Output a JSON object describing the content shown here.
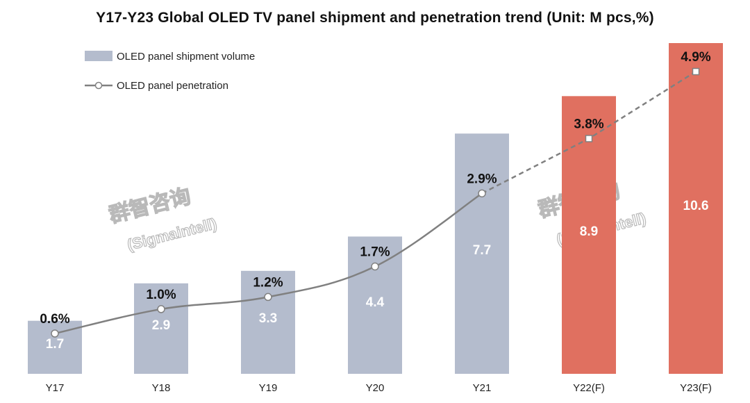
{
  "chart_data": {
    "type": "bar",
    "title": "Y17-Y23 Global OLED TV panel shipment and penetration trend (Unit: M pcs,%)",
    "categories": [
      "Y17",
      "Y18",
      "Y19",
      "Y20",
      "Y21",
      "Y22(F)",
      "Y23(F)"
    ],
    "series": [
      {
        "name": "OLED panel shipment volume",
        "type": "bar",
        "values": [
          1.7,
          2.9,
          3.3,
          4.4,
          7.7,
          8.9,
          10.6
        ],
        "labels": [
          "1.7",
          "2.9",
          "3.3",
          "4.4",
          "7.7",
          "8.9",
          "10.6"
        ],
        "color": "#b4bccd",
        "forecast_color": "#e07060"
      },
      {
        "name": "OLED panel penetration",
        "type": "line",
        "values": [
          0.6,
          1.0,
          1.2,
          1.7,
          2.9,
          3.8,
          4.9
        ],
        "labels": [
          "0.6%",
          "1.0%",
          "1.2%",
          "1.7%",
          "2.9%",
          "3.8%",
          "4.9%"
        ],
        "color": "#808080",
        "forecast_dashed": true
      }
    ],
    "forecast_categories": [
      "Y22(F)",
      "Y23(F)"
    ],
    "legend_position": "top-left",
    "grid": false,
    "ylim": [
      0,
      10.6
    ],
    "watermark": [
      "群智咨询",
      "(Sigmaintell)"
    ]
  }
}
